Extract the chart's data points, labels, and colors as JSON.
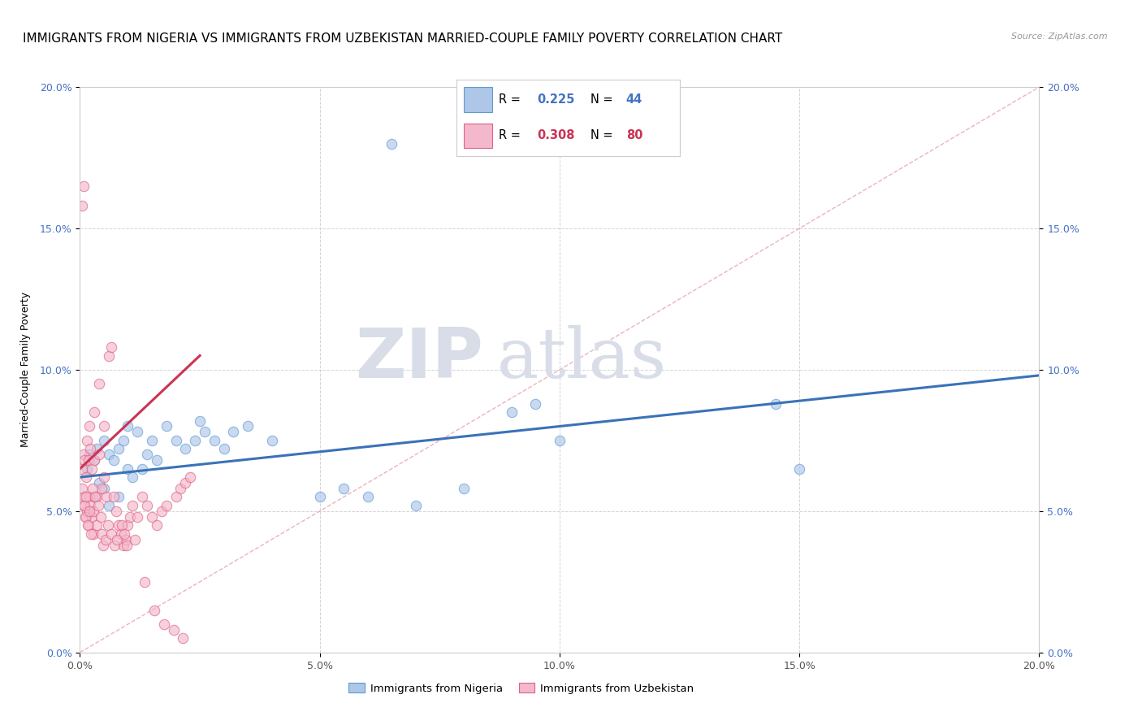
{
  "title": "IMMIGRANTS FROM NIGERIA VS IMMIGRANTS FROM UZBEKISTAN MARRIED-COUPLE FAMILY POVERTY CORRELATION CHART",
  "source": "Source: ZipAtlas.com",
  "ylabel": "Married-Couple Family Poverty",
  "legend_nigeria": "Immigrants from Nigeria",
  "legend_uzbekistan": "Immigrants from Uzbekistan",
  "R_nigeria": 0.225,
  "N_nigeria": 44,
  "R_uzbekistan": 0.308,
  "N_uzbekistan": 80,
  "color_nigeria": "#aec6e8",
  "color_uzbekistan": "#f4b8cc",
  "edge_nigeria": "#5b9bd5",
  "edge_uzbekistan": "#e06080",
  "line_nigeria": "#3a72b8",
  "line_uzbekistan": "#cc3355",
  "diag_color": "#e8a0b0",
  "watermark_zip": "ZIP",
  "watermark_atlas": "atlas",
  "xlim": [
    0,
    20
  ],
  "ylim": [
    0,
    20
  ],
  "xticks": [
    0,
    5,
    10,
    15,
    20
  ],
  "yticks": [
    0,
    5,
    10,
    15,
    20
  ],
  "xticklabels": [
    "0.0%",
    "5.0%",
    "10.0%",
    "15.0%",
    "20.0%"
  ],
  "yticklabels": [
    "0.0%",
    "5.0%",
    "10.0%",
    "15.0%",
    "20.0%"
  ],
  "grid_color": "#d0d0d0",
  "bg_color": "#ffffff",
  "title_fontsize": 11,
  "watermark_color": "#d8dde8",
  "scatter_size": 80,
  "scatter_alpha": 0.65,
  "nigeria_x": [
    0.15,
    0.2,
    0.3,
    0.3,
    0.35,
    0.4,
    0.5,
    0.5,
    0.6,
    0.6,
    0.7,
    0.8,
    0.8,
    0.9,
    1.0,
    1.0,
    1.1,
    1.2,
    1.3,
    1.4,
    1.5,
    1.6,
    1.8,
    2.0,
    2.2,
    2.4,
    2.5,
    2.6,
    2.8,
    3.0,
    3.2,
    3.5,
    4.0,
    5.0,
    5.5,
    6.0,
    7.0,
    8.0,
    9.0,
    9.5,
    10.0,
    14.5,
    15.0,
    6.5
  ],
  "nigeria_y": [
    6.5,
    7.0,
    6.8,
    5.5,
    7.2,
    6.0,
    7.5,
    5.8,
    7.0,
    5.2,
    6.8,
    7.2,
    5.5,
    7.5,
    6.5,
    8.0,
    6.2,
    7.8,
    6.5,
    7.0,
    7.5,
    6.8,
    8.0,
    7.5,
    7.2,
    7.5,
    8.2,
    7.8,
    7.5,
    7.2,
    7.8,
    8.0,
    7.5,
    5.5,
    5.8,
    5.5,
    5.2,
    5.8,
    8.5,
    8.8,
    7.5,
    8.8,
    6.5,
    18.0
  ],
  "uzbekistan_x": [
    0.05,
    0.05,
    0.08,
    0.08,
    0.1,
    0.1,
    0.12,
    0.12,
    0.15,
    0.15,
    0.18,
    0.18,
    0.2,
    0.2,
    0.22,
    0.22,
    0.25,
    0.25,
    0.28,
    0.28,
    0.3,
    0.3,
    0.35,
    0.35,
    0.4,
    0.4,
    0.45,
    0.45,
    0.5,
    0.5,
    0.55,
    0.6,
    0.65,
    0.7,
    0.75,
    0.8,
    0.85,
    0.9,
    0.95,
    1.0,
    1.05,
    1.1,
    1.2,
    1.3,
    1.4,
    1.5,
    1.6,
    1.7,
    1.8,
    2.0,
    2.1,
    2.2,
    2.3,
    0.05,
    0.07,
    0.09,
    0.11,
    0.13,
    0.16,
    0.19,
    0.23,
    0.27,
    0.32,
    0.38,
    0.43,
    0.48,
    0.53,
    0.58,
    0.65,
    0.72,
    0.78,
    0.88,
    0.92,
    0.98,
    1.15,
    1.35,
    1.55,
    1.75,
    1.95,
    2.15
  ],
  "uzbekistan_y": [
    6.5,
    5.8,
    5.2,
    7.0,
    6.8,
    5.5,
    4.8,
    6.2,
    5.0,
    7.5,
    4.5,
    6.8,
    5.5,
    8.0,
    5.2,
    7.2,
    4.8,
    6.5,
    5.0,
    4.2,
    6.8,
    8.5,
    5.5,
    4.5,
    7.0,
    9.5,
    5.8,
    4.2,
    8.0,
    6.2,
    5.5,
    10.5,
    10.8,
    5.5,
    5.0,
    4.5,
    4.2,
    3.8,
    4.0,
    4.5,
    4.8,
    5.2,
    4.8,
    5.5,
    5.2,
    4.8,
    4.5,
    5.0,
    5.2,
    5.5,
    5.8,
    6.0,
    6.2,
    15.8,
    16.5,
    5.2,
    4.8,
    5.5,
    4.5,
    5.0,
    4.2,
    5.8,
    5.5,
    5.2,
    4.8,
    3.8,
    4.0,
    4.5,
    4.2,
    3.8,
    4.0,
    4.5,
    4.2,
    3.8,
    4.0,
    2.5,
    1.5,
    1.0,
    0.8,
    0.5
  ]
}
